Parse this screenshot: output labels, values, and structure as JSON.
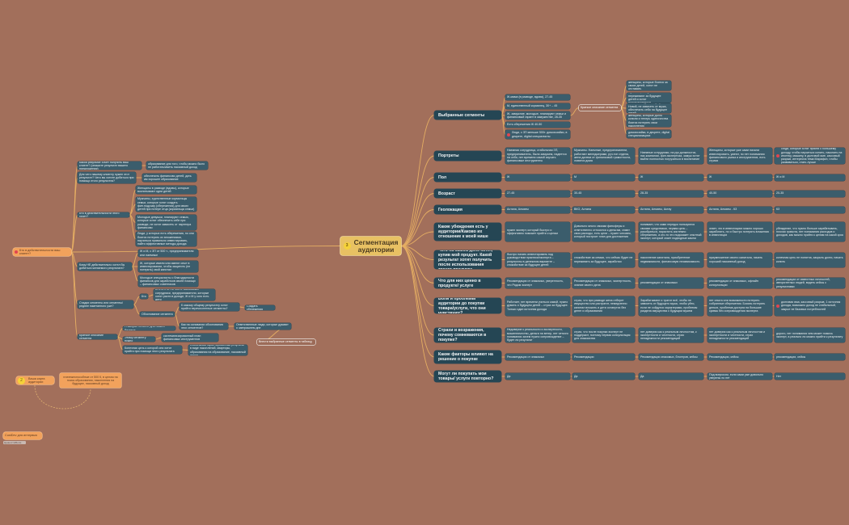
{
  "colors": {
    "background": "#a26f5b",
    "node": "#3b5d6c",
    "category": "#254654",
    "connector": "#e4ad63",
    "orange": "#f2a25c",
    "center": "#e8c163",
    "dot": "#e0454f"
  },
  "center": {
    "title": "Сегментация аудитории",
    "badge": "3"
  },
  "segments": {
    "label": "Выбранные сегменты",
    "items": [
      "Ж-мама (в разводе, вдова), 27-45",
      "М, единственный кормилец, 30+ – 45",
      "Ж, замужние, молодые, планируют семьи и финансовый гарант в замужестве, 28-35",
      "Есть сбережения Ж 40-50",
      "Люди, с ЗП меньше 500т. домохозяйки, в декрете, digital специалисты"
    ],
    "group_label": "Краткое описание сегмента",
    "descriptions": [
      "женщины, которые боятся за своих детей, хотят не отставать",
      "мужчины, которые переживают за будущее детей и хотят подстраховаться",
      "стоите победа в ситуации с Новой, не зависеть от мужа, обеспечить себя на будущее детей",
      "женщины, которые долго копили и теперь одиночества боятся потерять свои накопления",
      "домохозяйки, в декрете, digital специализациях"
    ]
  },
  "rows": [
    {
      "question": "Портреты",
      "cells": [
        "Наемная сотрудница, стабильная ЗП, предприниматель, была замужем, надеется на себя, нет времени самой изучать финансовые инструменты",
        "Мужчины. Наемные, предприниматели, работают менеджерами, руч.топ отдела, жена далека от финансовой грамотности, ловятся дома",
        "Наемные сотрудники, на рук должностях, нас.компании, фин.экспертиза, замуж хотят выйти полностью погрузиться в воспитание",
        "Женщины, которые уже сами начали инвестировать, умеют, но нет понимания финансового рынка и инструментов, есть страхи",
        "Люди, которые хотят прийти к большему доходу, чтобы научиться копить, накопить на ипотеку, машину, в долговой яме, кассовый разрыв, интересна тема Марафон, чтобы развиваться, стать лучше"
      ]
    },
    {
      "question": "Пол",
      "cells": [
        "Ж",
        "М",
        "Ж",
        "Ж",
        "Ж и М"
      ]
    },
    {
      "question": "Возраст",
      "cells": [
        "27-45",
        "30-45",
        "28-35",
        "40-50",
        "20-35"
      ]
    },
    {
      "question": "Геолокация",
      "cells": [
        "Астана, Алматы",
        "ВКО, Астана",
        "Астана, Алматы, Актау",
        "Астана, Алматы - КЗ",
        "КЗ"
      ]
    },
    {
      "question": "Какие убеждения есть у аудитории/Каково их отношение к моей нише",
      "cells": [
        "нужен эксперт, который быстро и эффективно поможет прийти к целям",
        "Довольно много своими финсферы и ответственно относятся к деньгам, знают свои расходы, есть цели – нужен человек, который построит план для достижения",
        "понимает, что сами нередко пользуются своими средствами, первая цель – разобраться, нарастить системно сбережения, а кто-то это подскажет опытный эксперт, который знает подводные камни",
        "знает, что в инвестициях можно хорошо заработать, но и быстро потерять вложения в инвестиции",
        "убеждение, что нужно больше зарабатывать, плохая грамота, нет понимания расходов и доходов, как можно прийти к целям на какой срок"
      ]
    },
    {
      "question": "Чего на самом деле хотят, купив мой продукт. Какой результат хотят получить после использования твоего продукта",
      "cells": [
        "быстро начать инвестировать под руководством практика/эксперта – результаты в денежном варианте – спокойствие за будущее детей",
        "спокойствие за семью, что сейчас будет не переживать за будущее, заработки",
        "накопление капитала, приобретение недвижимости, финансовую независимость",
        "приумножение своего капитала, начать хороший пассивный доход",
        "конечная цель не понятна, закрыть долги, начать копить"
      ]
    },
    {
      "question": "Что для них ценно в продукте/ услуге",
      "cells": [
        "Рекомендации от знакомых, уверенность, что Рядом эксперт",
        "Рекомендации от знакомых, экспертность, знание своего дела",
        "рекомендации от знакомых",
        "рекомендации от знакомых, офлайн консультации",
        "рекомендации от известных личностей, авторитетных людей, видеть кейсы с результатами"
      ]
    },
    {
      "question": "Боли и проблемы аудитории до покупки товара/услуги, что они чувствуют?",
      "cells": [
        "Работает, нет времени учиться самой, нужно думать о будущем детей – страх за будущее. Только один источник дохода",
        "страх, что при разводе жена отберет имущество или растратит, немедленно капитал вложить и дети останутся без денег и образования",
        "Зарабатывают и тратят всё, чтобы не зависеть от будущего мужа, чтобы уйти, если не сойдутся характерами, проблемы раздела имущества с будущим мужем",
        "нет опыта или возможности потерять собранные сбережения. Боязнь потерять деньги, проблема доступа на большие суммы без сопровождения эксперта",
        "долговая яма, кассовый разрыв, 1 источник дохода, возможно доход не стабильный, закрыт не базовых потребностей"
      ]
    },
    {
      "question": "Страхи и возражения, почему сомневаются в покупке?",
      "cells": [
        "Недоверие к реальности и экспертности, мошенничество, деньги на ветер, нет четкого понимания зачем нужно сопровождение – будет ли результат",
        "страх, что после покупки эксперт не поддержит, поэтому первая консультация для знакомства",
        "нет доверия как к реальным личностям, к экспертности и честности, страх ненадежности рекомендаций",
        "нет доверия как к реальным личностям и экспертности и честности, страх ненадежности рекомендаций",
        "дорого, нет понимания чем может помочь эксперт, а реально ли можно прийти к результату"
      ]
    },
    {
      "question": "Какие факторы влияют на решение о покупке",
      "cells": [
        "Рекомендации от знакомых",
        "Рекомендации",
        "Рекомендации знакомых, блогеров, кейсы",
        "Рекомендации, кейсы",
        "рекомендации, кейсы"
      ]
    },
    {
      "question": "Могут ли покупать мои товары/ услуги повторно?",
      "cells": [
        "Да",
        "Да",
        "Да",
        "Под вопросом, если сами уже довольно уверены по нет",
        "Нет"
      ]
    }
  ],
  "left": {
    "root": "Кто в действительности ваш клиент?",
    "q1": {
      "q": "Какой результат хочет получить ваш клиент? (опишите результат вашего предложения)",
      "a": "образование для того, чтобы можно было не работать/иметь пассивный доход"
    },
    "q2": {
      "q": "Для чего нашему клиенту нужен этот результат? Чего вы хотите добиться при помощи этого результата?",
      "a": "обеспечить финансово детей, дать им хорошее образование"
    },
    "q3": {
      "q": "Кто в действительности этого хочет?",
      "a": [
        "Женщины в разводе (вдовы), которые воспитывают одни детей",
        "Мужчины, единственные кормильцы семьи, которые хотят создать фин.подушку (сбережения) для своих детей при потере отца (кормильца семьи)",
        "Молодые девушки, планируют семью, которые хотят обеспечить себе при разводе, не хотят зависеть от партнера финансово",
        "Люди, у которых есть сбережения, но они боятся потерять их вложениями, научиться правильно инвестировать, найти эффективные методы дохода"
      ]
    },
    "q4": {
      "q": "Кому НЕ действительно хотел бы добиться желаемого результата?",
      "a": [
        "Ж и М, с ЗП от 500 т., предприниматели или наемные",
        "Ж, которые имели или имеют опыт в инвестировании, чтобы защитить (не потерять) свой капитал",
        "Молодые специалисты с благодарности финансов для заработков своей помощи – финансовых советников"
      ]
    },
    "q5": {
      "q": "Стадии сегменты или сегменты/реднее пакетанного уже?",
      "who": "Кто",
      "who_a": "Ж и М с ЗП от 500 к. Банковские сотрудники, предприниматели, которые хотят расти в доходе, Ж и М у кого есть дети",
      "basis": "Обоснование сегмента",
      "basis_q1": "К какому общему результату хотят прийти перечисленные сегменты?",
      "basis_a1": "Создать сбережения",
      "basis_q2": "Как на основании обоснования этих сегментов?",
      "basis_a2": "Ответственные люди, которые думают о завтрашнем дне"
    },
    "q6": {
      "q": "Краткое описание сегмента",
      "s1": "Я выбрал сегмент для нового бизнеса",
      "s2": "Этому сегменту нужно",
      "s2a": "систематизированный план финансовых инструментов",
      "s3": "Конечная цель к которой они хотят прийти при помощи этого результата",
      "s3a": "стабильный гарантированный результат в виде накоплений, квартиры, образования на образование, пассивный доход"
    },
    "summary": "Внести выбранные сегменты в таблицу"
  },
  "bottom": {
    "map_label": "Ваша карта аудитории",
    "map_badge": "2",
    "map_note": "платежеспособные от 500 К, в целом на поиск образования, накопления на будущее, пассивный доход",
    "custdev": "CustDev для интервью",
    "tag": "Ценности/Боли"
  }
}
